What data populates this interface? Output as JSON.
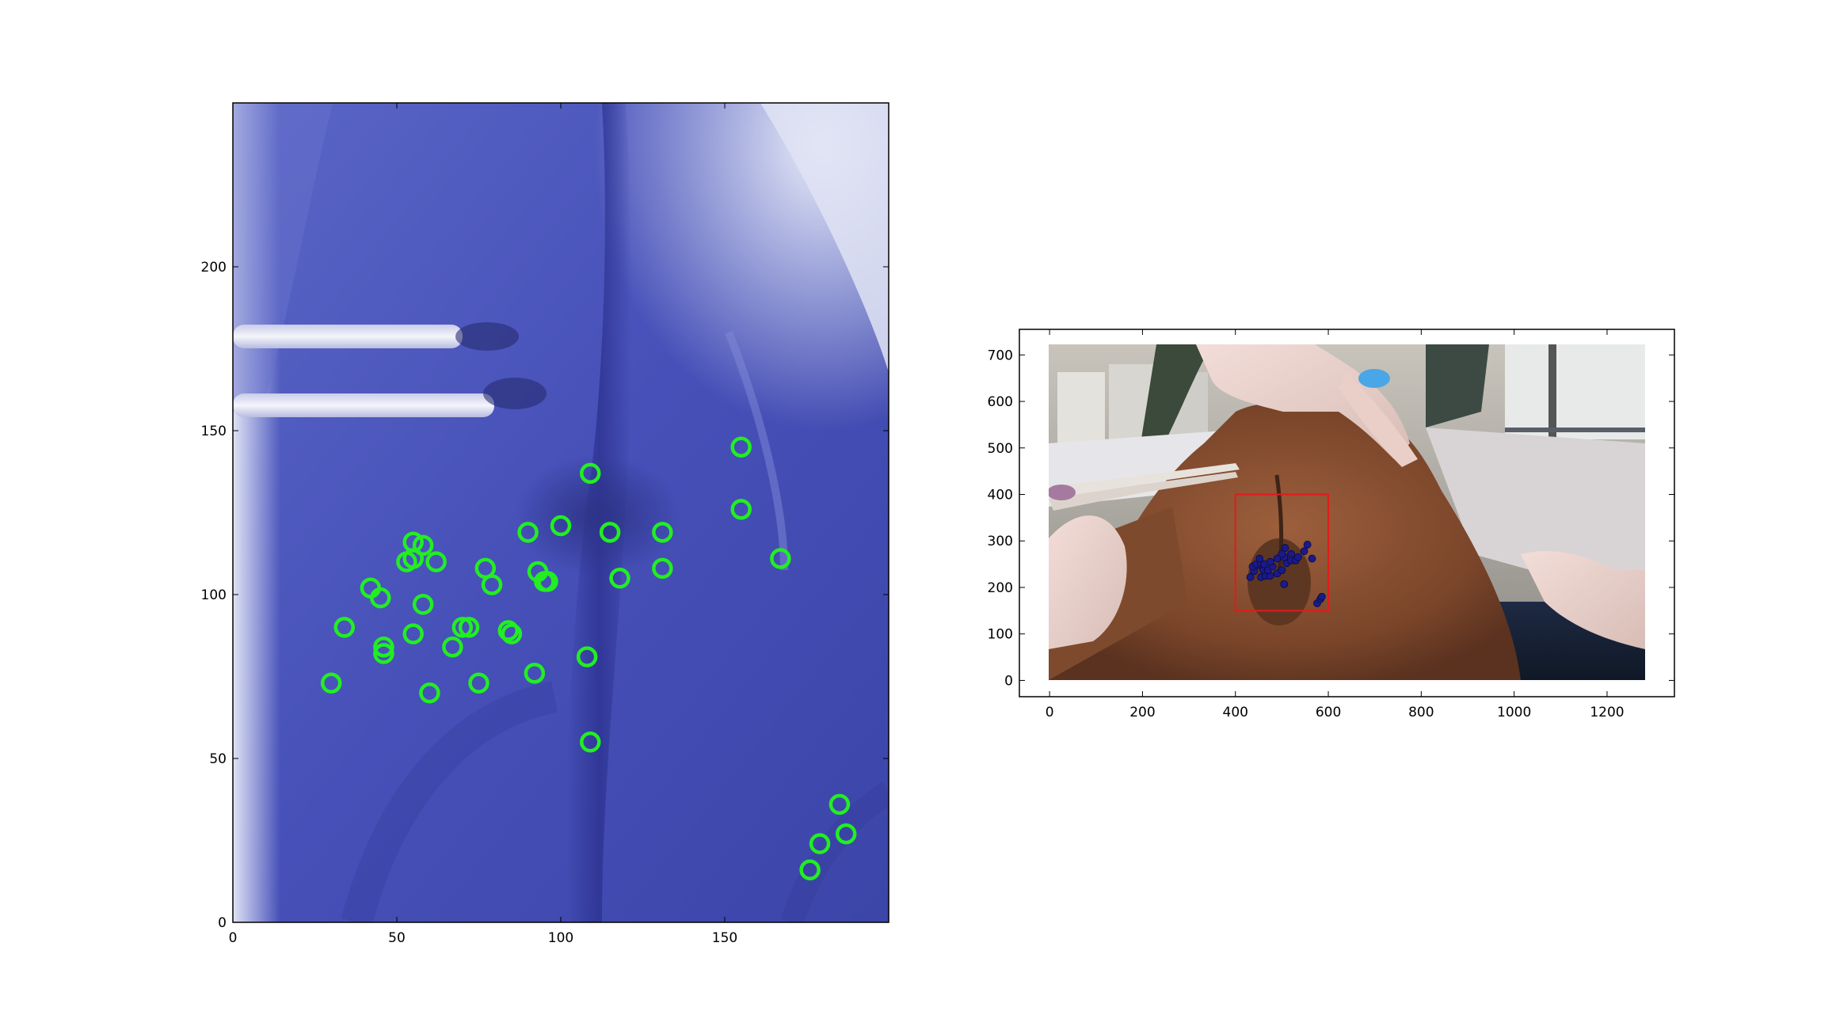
{
  "chart_data": [
    {
      "type": "scatter",
      "title": "",
      "xlabel": "",
      "ylabel": "",
      "xlim": [
        0,
        200
      ],
      "ylim": [
        250,
        0
      ],
      "grid": false,
      "background": "image",
      "x_ticks": [
        0,
        50,
        100,
        150
      ],
      "y_ticks": [
        0,
        50,
        100,
        150,
        200
      ],
      "x_tick_labels": [
        "0",
        "50",
        "100",
        "150"
      ],
      "y_tick_labels": [
        "0",
        "50",
        "100",
        "150",
        "200"
      ],
      "marker": "open-circle",
      "marker_color": "#22ee22",
      "points": [
        {
          "x": 176,
          "y": 16
        },
        {
          "x": 179,
          "y": 24
        },
        {
          "x": 187,
          "y": 27
        },
        {
          "x": 185,
          "y": 36
        },
        {
          "x": 109,
          "y": 55
        },
        {
          "x": 30,
          "y": 73
        },
        {
          "x": 60,
          "y": 70
        },
        {
          "x": 75,
          "y": 73
        },
        {
          "x": 92,
          "y": 76
        },
        {
          "x": 108,
          "y": 81
        },
        {
          "x": 46,
          "y": 82
        },
        {
          "x": 46,
          "y": 84
        },
        {
          "x": 67,
          "y": 84
        },
        {
          "x": 55,
          "y": 88
        },
        {
          "x": 34,
          "y": 90
        },
        {
          "x": 70,
          "y": 90
        },
        {
          "x": 72,
          "y": 90
        },
        {
          "x": 84,
          "y": 89
        },
        {
          "x": 85,
          "y": 88
        },
        {
          "x": 58,
          "y": 97
        },
        {
          "x": 45,
          "y": 99
        },
        {
          "x": 42,
          "y": 102
        },
        {
          "x": 79,
          "y": 103
        },
        {
          "x": 96,
          "y": 104
        },
        {
          "x": 95,
          "y": 104
        },
        {
          "x": 118,
          "y": 105
        },
        {
          "x": 93,
          "y": 107
        },
        {
          "x": 77,
          "y": 108
        },
        {
          "x": 131,
          "y": 108
        },
        {
          "x": 53,
          "y": 110
        },
        {
          "x": 55,
          "y": 111
        },
        {
          "x": 62,
          "y": 110
        },
        {
          "x": 167,
          "y": 111
        },
        {
          "x": 55,
          "y": 116
        },
        {
          "x": 58,
          "y": 115
        },
        {
          "x": 90,
          "y": 119
        },
        {
          "x": 100,
          "y": 121
        },
        {
          "x": 115,
          "y": 119
        },
        {
          "x": 131,
          "y": 119
        },
        {
          "x": 155,
          "y": 126
        },
        {
          "x": 109,
          "y": 137
        },
        {
          "x": 155,
          "y": 145
        }
      ]
    },
    {
      "type": "scatter",
      "title": "",
      "xlabel": "",
      "ylabel": "",
      "xlim": [
        -65,
        1345
      ],
      "ylim": [
        755,
        -35
      ],
      "grid": false,
      "background": "image",
      "x_ticks": [
        0,
        200,
        400,
        600,
        800,
        1000,
        1200
      ],
      "y_ticks": [
        0,
        100,
        200,
        300,
        400,
        500,
        600,
        700
      ],
      "x_tick_labels": [
        "0",
        "200",
        "400",
        "600",
        "800",
        "1000",
        "1200"
      ],
      "y_tick_labels": [
        "0",
        "100",
        "200",
        "300",
        "400",
        "500",
        "600",
        "700"
      ],
      "marker": "filled-circle",
      "marker_color": "#1a1a8c",
      "bounding_box": {
        "x0": 400,
        "y0": 150,
        "x1": 600,
        "y1": 400,
        "color": "#e31a1c"
      },
      "points": [
        {
          "x": 576,
          "y": 166
        },
        {
          "x": 583,
          "y": 175
        },
        {
          "x": 586,
          "y": 180
        },
        {
          "x": 505,
          "y": 207
        },
        {
          "x": 432,
          "y": 222
        },
        {
          "x": 455,
          "y": 222
        },
        {
          "x": 465,
          "y": 225
        },
        {
          "x": 475,
          "y": 225
        },
        {
          "x": 490,
          "y": 230
        },
        {
          "x": 440,
          "y": 235
        },
        {
          "x": 460,
          "y": 238
        },
        {
          "x": 470,
          "y": 237
        },
        {
          "x": 500,
          "y": 237
        },
        {
          "x": 437,
          "y": 245
        },
        {
          "x": 450,
          "y": 248
        },
        {
          "x": 480,
          "y": 245
        },
        {
          "x": 445,
          "y": 250
        },
        {
          "x": 455,
          "y": 252
        },
        {
          "x": 462,
          "y": 250
        },
        {
          "x": 510,
          "y": 252
        },
        {
          "x": 475,
          "y": 255
        },
        {
          "x": 520,
          "y": 258
        },
        {
          "x": 530,
          "y": 258
        },
        {
          "x": 452,
          "y": 262
        },
        {
          "x": 490,
          "y": 262
        },
        {
          "x": 505,
          "y": 265
        },
        {
          "x": 535,
          "y": 265
        },
        {
          "x": 565,
          "y": 262
        },
        {
          "x": 500,
          "y": 272
        },
        {
          "x": 520,
          "y": 272
        },
        {
          "x": 548,
          "y": 278
        },
        {
          "x": 507,
          "y": 285
        },
        {
          "x": 555,
          "y": 292
        }
      ]
    }
  ]
}
